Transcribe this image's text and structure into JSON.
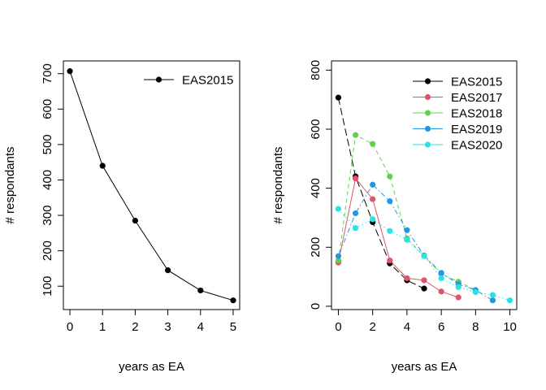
{
  "chart_data": [
    {
      "type": "line",
      "xlabel": "years as EA",
      "ylabel": "# respondants",
      "xlim": [
        0,
        5
      ],
      "ylim": [
        60,
        710
      ],
      "x_ticks": [
        0,
        1,
        2,
        3,
        4,
        5
      ],
      "y_ticks": [
        100,
        200,
        300,
        400,
        500,
        600,
        700
      ],
      "grid": false,
      "legend_position": "top-right",
      "series": [
        {
          "name": "EAS2015",
          "color": "#000000",
          "dash": "solid",
          "x": [
            0,
            1,
            2,
            3,
            4,
            5
          ],
          "y": [
            707,
            440,
            285,
            145,
            88,
            60
          ]
        }
      ]
    },
    {
      "type": "line",
      "xlabel": "years as EA",
      "ylabel": "# respondants",
      "xlim": [
        0,
        10
      ],
      "ylim": [
        20,
        800
      ],
      "x_ticks": [
        0,
        2,
        4,
        6,
        8,
        10
      ],
      "y_ticks": [
        0,
        200,
        400,
        600,
        800
      ],
      "grid": false,
      "legend_position": "top-right",
      "series": [
        {
          "name": "EAS2015",
          "color": "#000000",
          "dash": "longdash",
          "x": [
            0,
            1,
            2,
            3,
            4,
            5
          ],
          "y": [
            707,
            440,
            285,
            145,
            88,
            60
          ]
        },
        {
          "name": "EAS2017",
          "color": "#DF536B",
          "dash": "solid",
          "x": [
            0,
            1,
            2,
            3,
            4,
            5,
            6,
            7
          ],
          "y": [
            148,
            433,
            363,
            155,
            95,
            88,
            50,
            30
          ]
        },
        {
          "name": "EAS2018",
          "color": "#61D04F",
          "dash": "dashed",
          "x": [
            0,
            1,
            2,
            3,
            4,
            5,
            6,
            7,
            8
          ],
          "y": [
            155,
            580,
            550,
            440,
            230,
            170,
            110,
            83,
            55
          ]
        },
        {
          "name": "EAS2019",
          "color": "#2297E6",
          "dash": "dotdash",
          "x": [
            0,
            1,
            2,
            3,
            4,
            5,
            6,
            7,
            8,
            9
          ],
          "y": [
            170,
            315,
            412,
            356,
            258,
            172,
            113,
            75,
            55,
            20
          ]
        },
        {
          "name": "EAS2020",
          "color": "#28E2E5",
          "dash": "dotted",
          "x": [
            0,
            1,
            2,
            3,
            4,
            5,
            6,
            7,
            8,
            9,
            10
          ],
          "y": [
            330,
            265,
            295,
            255,
            225,
            170,
            95,
            65,
            48,
            38,
            20
          ]
        }
      ]
    }
  ]
}
